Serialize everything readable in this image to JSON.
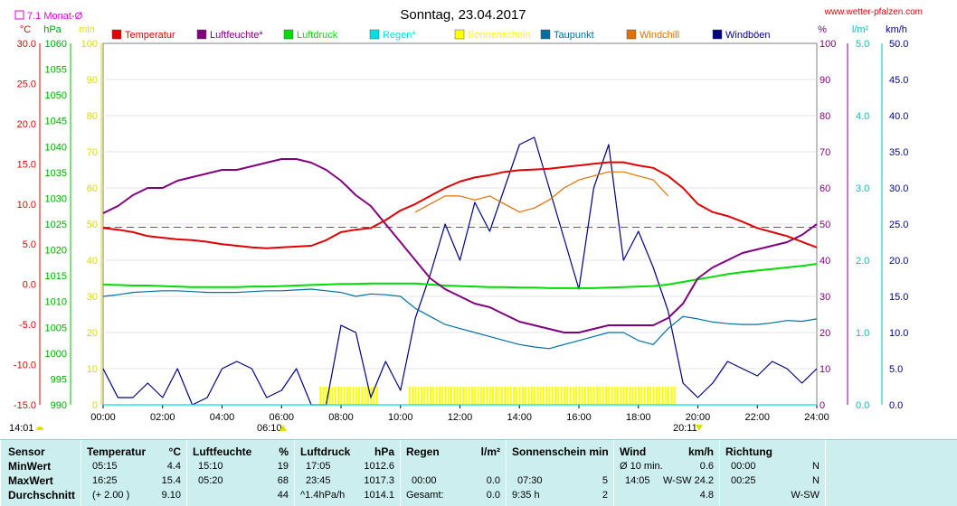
{
  "header": {
    "title": "Sonntag, 23.04.2017",
    "site": "www.wetter-pfalzen.com",
    "month_avg": "7.1 Monat-Ø"
  },
  "units": {
    "temp": "°C",
    "pressure": "hPa",
    "sun": "min",
    "percent": "%",
    "rain": "l/m²",
    "wind": "km/h"
  },
  "footer": {
    "sunrise": "06:10",
    "sunset": "20:11",
    "left_time": "14:01"
  },
  "colors": {
    "temperature": "#e00000",
    "humidity": "#800080",
    "pressure": "#00dd00",
    "rain": "#00e0e0",
    "sunshine": "#ffff00",
    "dewpoint": "#0070a0",
    "windchill": "#e07000",
    "gusts": "#000080",
    "month_avg": "#e000e0",
    "stats_bg": "#cdeeee"
  },
  "chart_data": {
    "type": "line",
    "x": [
      "00:00",
      "00:30",
      "01:00",
      "01:30",
      "02:00",
      "02:30",
      "03:00",
      "03:30",
      "04:00",
      "04:30",
      "05:00",
      "05:30",
      "06:00",
      "06:30",
      "07:00",
      "07:30",
      "08:00",
      "08:30",
      "09:00",
      "09:30",
      "10:00",
      "10:30",
      "11:00",
      "11:30",
      "12:00",
      "12:30",
      "13:00",
      "13:30",
      "14:00",
      "14:30",
      "15:00",
      "15:30",
      "16:00",
      "16:30",
      "17:00",
      "17:30",
      "18:00",
      "18:30",
      "19:00",
      "19:30",
      "20:00",
      "20:30",
      "21:00",
      "21:30",
      "22:00",
      "22:30",
      "23:00",
      "23:30",
      "24:00"
    ],
    "x_ticks": [
      "00:00",
      "02:00",
      "04:00",
      "06:00",
      "08:00",
      "10:00",
      "12:00",
      "14:00",
      "16:00",
      "18:00",
      "20:00",
      "22:00",
      "24:00"
    ],
    "axes": {
      "temp": {
        "label": "°C",
        "ticks": [
          "30.0",
          "25.0",
          "20.0",
          "15.0",
          "10.0",
          "5.0",
          "0.0",
          "-5.0",
          "-10.0",
          "-15.0"
        ],
        "range": [
          -15,
          30
        ]
      },
      "pressure": {
        "label": "hPa",
        "ticks": [
          "1060",
          "1055",
          "1050",
          "1045",
          "1040",
          "1035",
          "1030",
          "1025",
          "1020",
          "1015",
          "1010",
          "1005",
          "1000",
          "995",
          "990"
        ],
        "range": [
          990,
          1060
        ]
      },
      "sun": {
        "label": "min",
        "ticks": [
          "100",
          "90",
          "80",
          "70",
          "60",
          "50",
          "40",
          "30",
          "20",
          "10",
          "0"
        ],
        "range": [
          0,
          100
        ]
      },
      "percent": {
        "label": "%",
        "ticks": [
          "100",
          "90",
          "80",
          "70",
          "60",
          "50",
          "40",
          "30",
          "20",
          "10",
          "0"
        ],
        "range": [
          0,
          100
        ]
      },
      "rain": {
        "label": "l/m²",
        "ticks": [
          "5.0",
          "4.0",
          "3.0",
          "2.0",
          "1.0",
          "0.0"
        ],
        "range": [
          0,
          5
        ]
      },
      "wind": {
        "label": "km/h",
        "ticks": [
          "50.0",
          "45.0",
          "40.0",
          "35.0",
          "30.0",
          "25.0",
          "20.0",
          "15.0",
          "10.0",
          "5.0",
          "0.0"
        ],
        "range": [
          0,
          50
        ]
      }
    },
    "month_avg_temp": 7.1,
    "series": [
      {
        "name": "Temperatur",
        "axis": "temp",
        "values": [
          7.0,
          6.8,
          6.5,
          6.0,
          5.8,
          5.6,
          5.5,
          5.3,
          5.0,
          4.8,
          4.6,
          4.5,
          4.6,
          4.7,
          4.8,
          5.5,
          6.5,
          6.8,
          7.0,
          8.0,
          9.2,
          10.0,
          11.0,
          12.0,
          12.8,
          13.3,
          13.6,
          14.0,
          14.2,
          14.3,
          14.4,
          14.6,
          14.8,
          15.0,
          15.2,
          15.2,
          14.8,
          14.5,
          13.5,
          12.0,
          10.0,
          9.0,
          8.5,
          7.8,
          7.0,
          6.5,
          6.0,
          5.3,
          4.6
        ]
      },
      {
        "name": "Luftfeuchte*",
        "axis": "percent",
        "values": [
          53,
          55,
          58,
          60,
          60,
          62,
          63,
          64,
          65,
          65,
          66,
          67,
          68,
          68,
          67,
          65,
          62,
          58,
          55,
          50,
          45,
          40,
          35,
          32,
          30,
          28,
          27,
          25,
          23,
          22,
          21,
          20,
          20,
          21,
          22,
          22,
          22,
          22,
          24,
          28,
          35,
          38,
          40,
          42,
          43,
          44,
          45,
          47,
          50
        ]
      },
      {
        "name": "Luftdruck",
        "axis": "pressure",
        "values": [
          1013.3,
          1013.2,
          1013.1,
          1013.1,
          1013.0,
          1012.9,
          1012.8,
          1012.8,
          1012.8,
          1012.8,
          1012.9,
          1012.9,
          1013.0,
          1013.1,
          1013.2,
          1013.3,
          1013.4,
          1013.4,
          1013.5,
          1013.5,
          1013.5,
          1013.5,
          1013.3,
          1013.1,
          1013.0,
          1012.9,
          1012.8,
          1012.8,
          1012.7,
          1012.7,
          1012.6,
          1012.6,
          1012.6,
          1012.6,
          1012.7,
          1012.8,
          1012.9,
          1013.0,
          1013.3,
          1013.8,
          1014.3,
          1014.8,
          1015.3,
          1015.7,
          1016.0,
          1016.3,
          1016.6,
          1016.9,
          1017.3
        ]
      },
      {
        "name": "Regen*",
        "axis": "rain",
        "values": [
          0,
          0,
          0,
          0,
          0,
          0,
          0,
          0,
          0,
          0,
          0,
          0,
          0,
          0,
          0,
          0,
          0,
          0,
          0,
          0,
          0,
          0,
          0,
          0,
          0,
          0,
          0,
          0,
          0,
          0,
          0,
          0,
          0,
          0,
          0,
          0,
          0,
          0,
          0,
          0,
          0,
          0,
          0,
          0,
          0,
          0,
          0,
          0,
          0
        ]
      },
      {
        "name": "Sonnenschein",
        "axis": "sun",
        "values": [
          0,
          0,
          0,
          0,
          0,
          0,
          0,
          0,
          0,
          0,
          0,
          0,
          0,
          0,
          0,
          5,
          5,
          5,
          5,
          0,
          0,
          5,
          5,
          5,
          5,
          5,
          5,
          5,
          5,
          5,
          5,
          5,
          5,
          5,
          5,
          5,
          5,
          5,
          5,
          0,
          0,
          0,
          0,
          0,
          0,
          0,
          0,
          0,
          0
        ]
      },
      {
        "name": "Taupunkt",
        "axis": "temp",
        "values": [
          -1.5,
          -1.3,
          -1.0,
          -0.9,
          -0.8,
          -0.8,
          -0.9,
          -1.0,
          -1.0,
          -1.0,
          -0.9,
          -0.8,
          -0.8,
          -0.7,
          -0.6,
          -0.8,
          -1.0,
          -1.5,
          -1.2,
          -1.3,
          -1.5,
          -3.0,
          -4.0,
          -5.0,
          -5.5,
          -6.0,
          -6.5,
          -7.0,
          -7.5,
          -7.8,
          -8.0,
          -7.5,
          -7.0,
          -6.5,
          -6.0,
          -6.0,
          -7.0,
          -7.5,
          -5.5,
          -4.0,
          -4.3,
          -4.7,
          -4.9,
          -5.0,
          -5.0,
          -4.8,
          -4.5,
          -4.6,
          -4.3
        ]
      },
      {
        "name": "Windchill",
        "axis": "temp",
        "values": [
          null,
          null,
          null,
          null,
          null,
          null,
          null,
          null,
          null,
          null,
          null,
          null,
          null,
          null,
          null,
          null,
          null,
          null,
          null,
          null,
          null,
          9.0,
          10.0,
          11.0,
          11.0,
          10.5,
          11.0,
          10.0,
          9.0,
          9.5,
          10.5,
          12.0,
          13.0,
          13.5,
          14.0,
          14.0,
          13.5,
          13.0,
          11.0,
          null,
          null,
          null,
          null,
          null,
          null,
          null,
          null,
          null,
          null
        ]
      },
      {
        "name": "Windböen",
        "axis": "wind",
        "values": [
          5,
          1,
          1,
          3,
          1,
          5,
          0,
          1,
          5,
          6,
          5,
          1,
          2,
          5,
          0,
          0,
          11,
          10,
          1,
          6,
          2,
          12,
          18,
          25,
          20,
          28,
          24,
          30,
          36,
          37,
          30,
          23,
          16,
          30,
          36,
          20,
          24,
          19,
          13,
          3,
          1,
          3,
          6,
          5,
          4,
          6,
          5,
          3,
          5
        ]
      }
    ]
  },
  "stats": {
    "headers": {
      "sensor": "Sensor",
      "temperature": "Temperatur",
      "temp_unit": "°C",
      "humidity": "Luftfeuchte",
      "hum_unit": "%",
      "pressure": "Luftdruck",
      "press_unit": "hPa",
      "rain": "Regen",
      "rain_unit": "l/m²",
      "sun": "Sonnenschein min",
      "wind": "Wind",
      "wind_unit": "km/h",
      "direction": "Richtung"
    },
    "rows": [
      {
        "label": "MinWert",
        "temp_time": "05:15",
        "temp_val": "4.4",
        "hum_time": "15:10",
        "hum_val": "19",
        "press_time": "17:05",
        "press_val": "1012.6",
        "rain_time": "",
        "rain_val": "",
        "sun_time": "",
        "sun_val": "",
        "wind_time": "Ø 10 min.",
        "wind_dir": "",
        "wind_val": "0.6",
        "dir_time": "00:00",
        "dir_val": "N"
      },
      {
        "label": "MaxWert",
        "temp_time": "16:25",
        "temp_val": "15.4",
        "hum_time": "05:20",
        "hum_val": "68",
        "press_time": "23:45",
        "press_val": "1017.3",
        "rain_time": "00:00",
        "rain_val": "0.0",
        "sun_time": "07:30",
        "sun_val": "5",
        "wind_time": "14:05",
        "wind_dir": "W-SW",
        "wind_val": "24.2",
        "dir_time": "00:25",
        "dir_val": "N"
      },
      {
        "label": "Durchschnitt",
        "temp_time": "(+ 2.00 )",
        "temp_val": "9.10",
        "hum_time": "",
        "hum_val": "44",
        "press_time": "^1.4hPa/h",
        "press_val": "1014.1",
        "rain_time": "Gesamt:",
        "rain_val": "0.0",
        "sun_time": "9:35 h",
        "sun_val": "2",
        "wind_time": "",
        "wind_dir": "",
        "wind_val": "4.8",
        "dir_time": "",
        "dir_val": "W-SW"
      }
    ]
  }
}
